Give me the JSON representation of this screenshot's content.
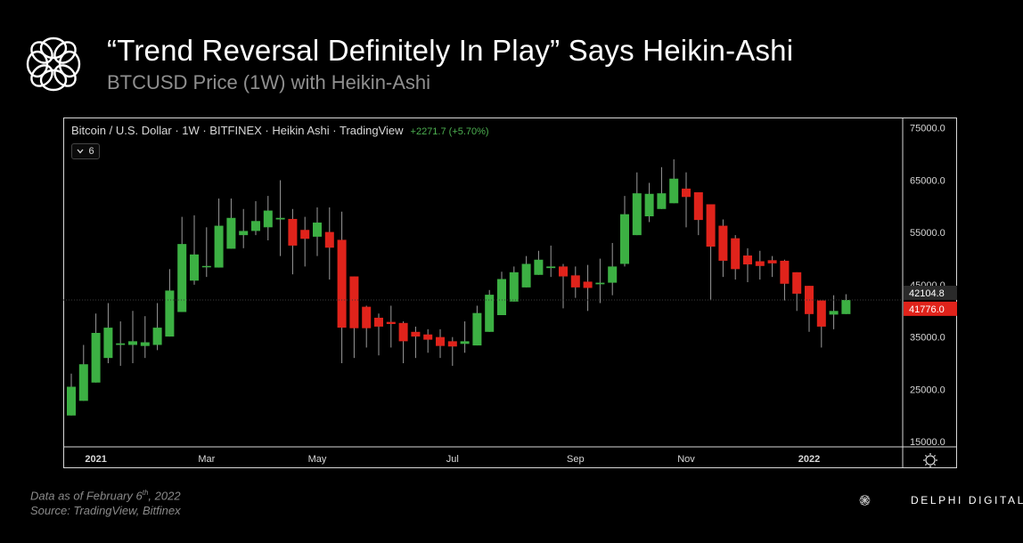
{
  "header": {
    "title": "“Trend Reversal Definitely In Play” Says Heikin-Ashi",
    "subtitle": "BTCUSD Price (1W) with Heikin-Ashi"
  },
  "legend": {
    "text": "Bitcoin / U.S. Dollar · 1W · BITFINEX · Heikin Ashi · TradingView",
    "change": "+2271.7 (+5.70%)",
    "collapse_count": "6"
  },
  "footer": {
    "line1_prefix": "Data as of February 6",
    "line1_sup": "th",
    "line1_suffix": ", 2022",
    "line2": "Source: TradingView, Bitfinex"
  },
  "brand": {
    "name": "DELPHI DIGITAL"
  },
  "colors": {
    "up": "#3cb043",
    "down": "#e0231b",
    "background": "#000000",
    "axis_text": "#d8d8d8"
  },
  "chart_data": {
    "type": "candlestick",
    "style": "heikin-ashi",
    "interval": "1W",
    "ylim": [
      14000,
      77000
    ],
    "y_ticks": [
      "75000.0",
      "65000.0",
      "55000.0",
      "45000.0",
      "35000.0",
      "25000.0",
      "15000.0"
    ],
    "x_ticks": [
      "2021",
      "Mar",
      "May",
      "Jul",
      "Sep",
      "Nov",
      "2022"
    ],
    "price_labels": [
      {
        "value": 42104.8,
        "label": "42104.8",
        "color": "#d8d8d8"
      },
      {
        "value": 41776.0,
        "label": "41776.0",
        "color": "#e0231b"
      }
    ],
    "grid": false,
    "candles": [
      {
        "o": 20000,
        "c": 25500,
        "h": 28000,
        "l": 20000
      },
      {
        "o": 22800,
        "c": 29800,
        "h": 33500,
        "l": 22800
      },
      {
        "o": 26300,
        "c": 35800,
        "h": 39500,
        "l": 26300
      },
      {
        "o": 31000,
        "c": 36800,
        "h": 41500,
        "l": 30000
      },
      {
        "o": 33500,
        "c": 33800,
        "h": 38000,
        "l": 29500
      },
      {
        "o": 33500,
        "c": 34200,
        "h": 40000,
        "l": 30000
      },
      {
        "o": 33300,
        "c": 34000,
        "h": 39000,
        "l": 31000
      },
      {
        "o": 33500,
        "c": 36800,
        "h": 41500,
        "l": 32500
      },
      {
        "o": 35100,
        "c": 43900,
        "h": 48000,
        "l": 35100
      },
      {
        "o": 39800,
        "c": 52800,
        "h": 58000,
        "l": 39800
      },
      {
        "o": 45800,
        "c": 50800,
        "h": 58300,
        "l": 45000
      },
      {
        "o": 48400,
        "c": 48600,
        "h": 56000,
        "l": 46500
      },
      {
        "o": 48300,
        "c": 56300,
        "h": 61500,
        "l": 48300
      },
      {
        "o": 51900,
        "c": 57800,
        "h": 61500,
        "l": 51900
      },
      {
        "o": 54500,
        "c": 55300,
        "h": 59500,
        "l": 52000
      },
      {
        "o": 55300,
        "c": 57200,
        "h": 61000,
        "l": 54500
      },
      {
        "o": 56000,
        "c": 59200,
        "h": 62000,
        "l": 53500
      },
      {
        "o": 57500,
        "c": 57800,
        "h": 65000,
        "l": 50500
      },
      {
        "o": 57600,
        "c": 52500,
        "h": 59500,
        "l": 47000
      },
      {
        "o": 55500,
        "c": 53800,
        "h": 58000,
        "l": 48500
      },
      {
        "o": 54200,
        "c": 56900,
        "h": 59800,
        "l": 50500
      },
      {
        "o": 55100,
        "c": 52100,
        "h": 59800,
        "l": 46000
      },
      {
        "o": 53600,
        "c": 36800,
        "h": 59000,
        "l": 30000
      },
      {
        "o": 46600,
        "c": 36700,
        "h": 46600,
        "l": 31000
      },
      {
        "o": 40800,
        "c": 36700,
        "h": 41000,
        "l": 33000
      },
      {
        "o": 38700,
        "c": 37000,
        "h": 39500,
        "l": 31500
      },
      {
        "o": 37900,
        "c": 37500,
        "h": 41000,
        "l": 33000
      },
      {
        "o": 37700,
        "c": 34200,
        "h": 38000,
        "l": 30000
      },
      {
        "o": 36000,
        "c": 35100,
        "h": 37000,
        "l": 31000
      },
      {
        "o": 35500,
        "c": 34500,
        "h": 36500,
        "l": 32000
      },
      {
        "o": 35000,
        "c": 33300,
        "h": 36500,
        "l": 31000
      },
      {
        "o": 34200,
        "c": 33200,
        "h": 35000,
        "l": 29500
      },
      {
        "o": 33700,
        "c": 34200,
        "h": 38000,
        "l": 32000
      },
      {
        "o": 33400,
        "c": 39600,
        "h": 41000,
        "l": 33400
      },
      {
        "o": 36000,
        "c": 43100,
        "h": 44000,
        "l": 36000
      },
      {
        "o": 39200,
        "c": 46100,
        "h": 47500,
        "l": 39200
      },
      {
        "o": 41800,
        "c": 47400,
        "h": 48500,
        "l": 41800
      },
      {
        "o": 44500,
        "c": 49000,
        "h": 50500,
        "l": 44500
      },
      {
        "o": 46900,
        "c": 49800,
        "h": 51500,
        "l": 46900
      },
      {
        "o": 48200,
        "c": 48500,
        "h": 52500,
        "l": 46500
      },
      {
        "o": 48500,
        "c": 46600,
        "h": 49000,
        "l": 40500
      },
      {
        "o": 46800,
        "c": 44500,
        "h": 48500,
        "l": 42500
      },
      {
        "o": 45600,
        "c": 44400,
        "h": 48800,
        "l": 40000
      },
      {
        "o": 45100,
        "c": 45400,
        "h": 50000,
        "l": 41500
      },
      {
        "o": 45400,
        "c": 48500,
        "h": 53000,
        "l": 43000
      },
      {
        "o": 49000,
        "c": 58500,
        "h": 62000,
        "l": 48500
      },
      {
        "o": 54500,
        "c": 62500,
        "h": 66500,
        "l": 54500
      },
      {
        "o": 58100,
        "c": 62400,
        "h": 64500,
        "l": 57000
      },
      {
        "o": 59500,
        "c": 62500,
        "h": 67500,
        "l": 59500
      },
      {
        "o": 60600,
        "c": 65300,
        "h": 69000,
        "l": 60600
      },
      {
        "o": 63400,
        "c": 61800,
        "h": 66500,
        "l": 56000
      },
      {
        "o": 62700,
        "c": 57400,
        "h": 62700,
        "l": 54500
      },
      {
        "o": 60400,
        "c": 52300,
        "h": 60400,
        "l": 42000
      },
      {
        "o": 56300,
        "c": 49600,
        "h": 57500,
        "l": 46500
      },
      {
        "o": 53900,
        "c": 48000,
        "h": 54500,
        "l": 46000
      },
      {
        "o": 50600,
        "c": 48900,
        "h": 52000,
        "l": 45500
      },
      {
        "o": 49500,
        "c": 48600,
        "h": 51500,
        "l": 46000
      },
      {
        "o": 49700,
        "c": 49100,
        "h": 50500,
        "l": 46500
      },
      {
        "o": 49600,
        "c": 45200,
        "h": 49800,
        "l": 42000
      },
      {
        "o": 47400,
        "c": 43300,
        "h": 47400,
        "l": 40000
      },
      {
        "o": 44800,
        "c": 39400,
        "h": 44800,
        "l": 36000
      },
      {
        "o": 42000,
        "c": 37000,
        "h": 42000,
        "l": 33000
      },
      {
        "o": 39300,
        "c": 40000,
        "h": 43000,
        "l": 36500
      },
      {
        "o": 39400,
        "c": 42100,
        "h": 43200,
        "l": 39400
      }
    ]
  }
}
